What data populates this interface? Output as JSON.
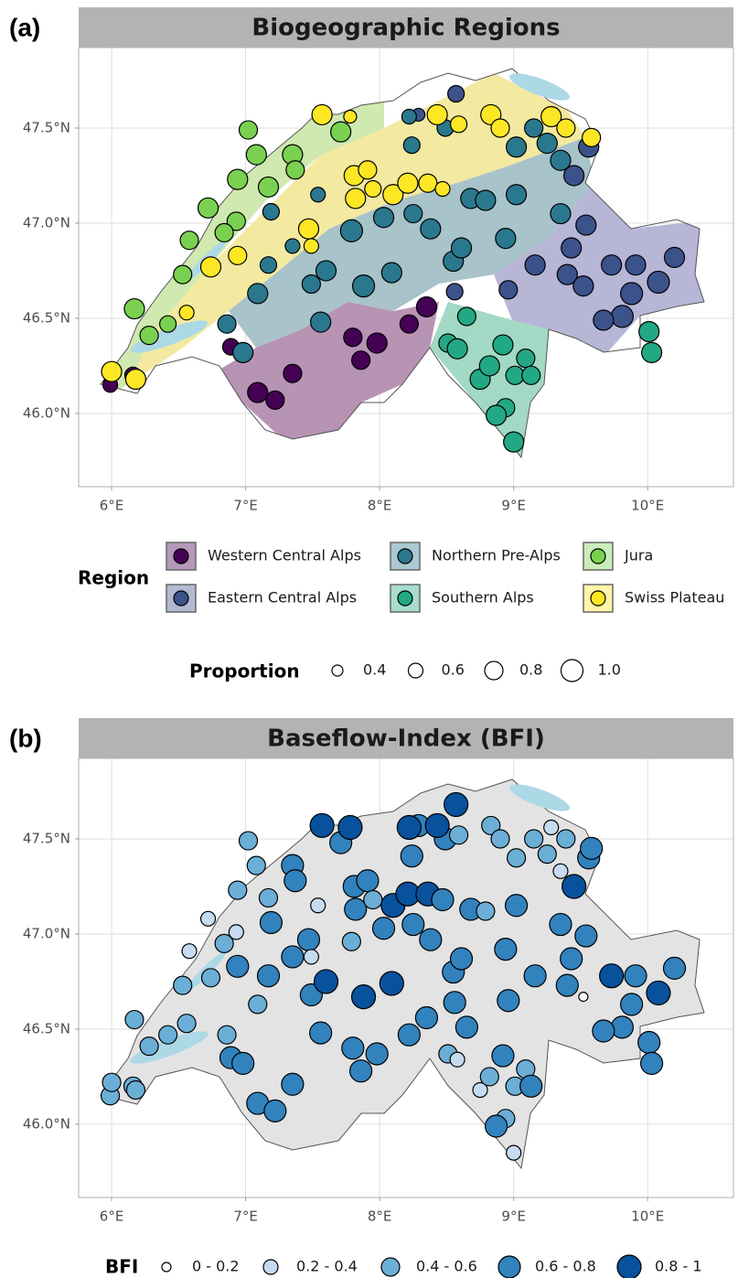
{
  "chart_data": [
    {
      "type": "scatter",
      "panel_label": "(a)",
      "title": "Biogeographic Regions",
      "xlim": [
        5.754,
        10.64
      ],
      "ylim": [
        45.615,
        47.923
      ],
      "xticks": [
        {
          "value": 6,
          "label": "6°E"
        },
        {
          "value": 7,
          "label": "7°E"
        },
        {
          "value": 8,
          "label": "8°E"
        },
        {
          "value": 9,
          "label": "9°E"
        },
        {
          "value": 10,
          "label": "10°E"
        }
      ],
      "yticks": [
        {
          "value": 46,
          "label": "46.0°N"
        },
        {
          "value": 46.5,
          "label": "46.5°N"
        },
        {
          "value": 47,
          "label": "47.0°N"
        },
        {
          "value": 47.5,
          "label": "47.5°N"
        }
      ],
      "grid": true,
      "legend_title": "Region",
      "size_legend_title": "Proportion",
      "size_legend": [
        0.4,
        0.6,
        0.8,
        {
          "value": 1,
          "label": "1.0"
        }
      ],
      "series": [
        {
          "name": "Western Central Alps",
          "color": "#440154",
          "x": [
            5.99,
            6.16,
            6.89,
            7.09,
            7.22,
            7.35,
            7.8,
            7.98,
            7.86,
            8.22,
            8.35
          ],
          "y": [
            46.15,
            46.2,
            46.35,
            46.11,
            46.07,
            46.21,
            46.4,
            46.37,
            46.28,
            46.47,
            46.56
          ],
          "sizes": [
            0.5,
            0.6,
            0.6,
            0.8,
            0.7,
            0.7,
            0.7,
            0.8,
            0.7,
            0.7,
            0.8
          ]
        },
        {
          "name": "Eastern Central Alps",
          "color": "#3b528b",
          "x": [
            8.57,
            8.29,
            8.56,
            8.96,
            9.16,
            9.45,
            9.56,
            9.54,
            9.4,
            9.52,
            9.43,
            9.73,
            9.91,
            10.08,
            10.2,
            9.88,
            9.81,
            9.67
          ],
          "y": [
            47.68,
            47.57,
            46.64,
            46.65,
            46.78,
            47.25,
            47.4,
            46.99,
            46.73,
            46.67,
            46.87,
            46.78,
            46.78,
            46.69,
            46.82,
            46.63,
            46.51,
            46.49
          ],
          "sizes": [
            0.6,
            0.4,
            0.6,
            0.7,
            0.8,
            0.8,
            0.8,
            0.8,
            0.8,
            0.8,
            0.8,
            0.8,
            0.8,
            0.9,
            0.8,
            0.9,
            0.9,
            0.8
          ]
        },
        {
          "name": "Northern Pre-Alps",
          "color": "#2a788e",
          "x": [
            6.86,
            6.98,
            7.09,
            7.17,
            7.19,
            7.35,
            7.49,
            7.56,
            7.6,
            7.54,
            7.79,
            7.88,
            8.03,
            8.09,
            8.22,
            8.24,
            8.25,
            8.38,
            8.49,
            8.55,
            8.61,
            8.68,
            8.79,
            8.94,
            9.02,
            9.02,
            9.15,
            9.25,
            9.35,
            9.35
          ],
          "y": [
            46.47,
            46.32,
            46.63,
            46.78,
            47.06,
            46.88,
            46.68,
            46.48,
            46.75,
            47.15,
            46.96,
            46.67,
            47.03,
            46.74,
            47.56,
            47.41,
            47.05,
            46.97,
            47.5,
            46.8,
            46.87,
            47.13,
            47.12,
            46.92,
            47.15,
            47.4,
            47.5,
            47.42,
            47.33,
            47.05
          ],
          "sizes": [
            0.7,
            0.8,
            0.8,
            0.6,
            0.6,
            0.5,
            0.7,
            0.8,
            0.8,
            0.5,
            0.9,
            0.9,
            0.8,
            0.8,
            0.5,
            0.6,
            0.7,
            0.8,
            0.6,
            0.8,
            0.8,
            0.8,
            0.8,
            0.8,
            0.8,
            0.8,
            0.7,
            0.8,
            0.8,
            0.8
          ]
        },
        {
          "name": "Southern Alps",
          "color": "#22a884",
          "x": [
            8.65,
            8.51,
            8.58,
            8.75,
            8.82,
            8.92,
            9.09,
            9.01,
            9.13,
            8.94,
            8.87,
            9.0,
            10.01,
            10.03
          ],
          "y": [
            46.51,
            46.37,
            46.34,
            46.18,
            46.25,
            46.36,
            46.29,
            46.2,
            46.2,
            46.03,
            45.99,
            45.85,
            46.43,
            46.32
          ],
          "sizes": [
            0.7,
            0.7,
            0.8,
            0.8,
            0.8,
            0.8,
            0.7,
            0.7,
            0.7,
            0.7,
            0.8,
            0.8,
            0.8,
            0.8
          ]
        },
        {
          "name": "Jura",
          "color": "#7ad151",
          "x": [
            7.02,
            7.71,
            7.08,
            6.94,
            7.17,
            6.72,
            6.93,
            6.84,
            6.58,
            6.53,
            6.17,
            6.28,
            6.42,
            7.35,
            7.37
          ],
          "y": [
            47.49,
            47.48,
            47.36,
            47.23,
            47.19,
            47.08,
            47.01,
            46.95,
            46.91,
            46.73,
            46.55,
            46.41,
            46.47,
            47.36,
            47.28
          ],
          "sizes": [
            0.7,
            0.8,
            0.8,
            0.8,
            0.8,
            0.8,
            0.7,
            0.7,
            0.7,
            0.7,
            0.8,
            0.7,
            0.6,
            0.8,
            0.7
          ]
        },
        {
          "name": "Swiss Plateau",
          "color": "#fde725",
          "x": [
            6.0,
            6.18,
            6.56,
            6.74,
            6.94,
            7.47,
            7.49,
            7.57,
            7.78,
            7.81,
            7.91,
            7.82,
            7.95,
            8.1,
            8.21,
            8.36,
            8.47,
            8.43,
            8.59,
            8.83,
            8.9,
            9.28,
            9.39,
            9.58
          ],
          "y": [
            46.22,
            46.18,
            46.53,
            46.77,
            46.83,
            46.97,
            46.88,
            47.57,
            47.56,
            47.25,
            47.28,
            47.13,
            47.18,
            47.15,
            47.21,
            47.21,
            47.18,
            47.57,
            47.52,
            47.57,
            47.5,
            47.56,
            47.5,
            47.45
          ],
          "sizes": [
            0.8,
            0.8,
            0.5,
            0.8,
            0.7,
            0.8,
            0.5,
            0.8,
            0.4,
            0.8,
            0.7,
            0.8,
            0.6,
            0.8,
            0.8,
            0.7,
            0.5,
            0.8,
            0.6,
            0.8,
            0.7,
            0.8,
            0.7,
            0.7
          ]
        }
      ]
    },
    {
      "type": "scatter",
      "panel_label": "(b)",
      "title": "Baseflow-Index (BFI)",
      "xlim": [
        5.754,
        10.64
      ],
      "ylim": [
        45.615,
        47.923
      ],
      "xticks": [
        {
          "value": 6,
          "label": "6°E"
        },
        {
          "value": 7,
          "label": "7°E"
        },
        {
          "value": 8,
          "label": "8°E"
        },
        {
          "value": 9,
          "label": "9°E"
        },
        {
          "value": 10,
          "label": "10°E"
        }
      ],
      "yticks": [
        {
          "value": 46,
          "label": "46.0°N"
        },
        {
          "value": 46.5,
          "label": "46.5°N"
        },
        {
          "value": 47,
          "label": "47.0°N"
        },
        {
          "value": 47.5,
          "label": "47.5°N"
        }
      ],
      "grid": true,
      "legend_title": "BFI",
      "bins": [
        0,
        0.2,
        0.4,
        0.6,
        0.8,
        1
      ],
      "bin_labels": [
        "0 - 0.2",
        "0.2 - 0.4",
        "0.4 - 0.6",
        "0.6 - 0.8",
        "0.8 - 1"
      ],
      "bin_colors": [
        "#f7fbff",
        "#c6dbef",
        "#6baed6",
        "#3182bd",
        "#08519c"
      ],
      "values": [
        [
          0.55,
          0.55,
          0.65,
          0.7,
          0.75,
          0.7,
          0.7,
          0.75,
          0.7,
          0.7,
          0.65
        ],
        [
          0.85,
          0.7,
          0.7,
          0.7,
          0.75,
          0.9,
          0.7,
          0.7,
          0.7,
          0.15,
          0.7,
          0.85,
          0.75,
          0.85,
          0.7,
          0.75,
          0.7,
          0.7
        ],
        [
          0.55,
          0.7,
          0.5,
          0.6,
          0.65,
          0.6,
          0.7,
          0.65,
          0.85,
          0.25,
          0.55,
          0.9,
          0.65,
          0.8,
          0.85,
          0.7,
          0.7,
          0.75,
          0.65,
          0.7,
          0.75,
          0.65,
          0.55,
          0.7,
          0.75,
          0.55,
          0.55,
          0.55,
          0.35,
          0.7
        ],
        [
          0.65,
          0.45,
          0.25,
          0.35,
          0.55,
          0.75,
          0.55,
          0.5,
          0.6,
          0.5,
          0.6,
          0.3,
          0.65,
          0.7
        ],
        [
          0.55,
          0.6,
          0.55,
          0.5,
          0.55,
          0.35,
          0.3,
          0.55,
          0.3,
          0.5,
          0.5,
          0.55,
          0.55,
          0.6,
          0.6
        ],
        [
          0.55,
          0.55,
          0.5,
          0.55,
          0.6,
          0.75,
          0.3,
          0.85,
          0.85,
          0.75,
          0.6,
          0.65,
          0.55,
          0.85,
          0.85,
          0.85,
          0.6,
          0.8,
          0.55,
          0.45,
          0.45,
          0.2,
          0.45,
          0.65
        ]
      ]
    }
  ]
}
